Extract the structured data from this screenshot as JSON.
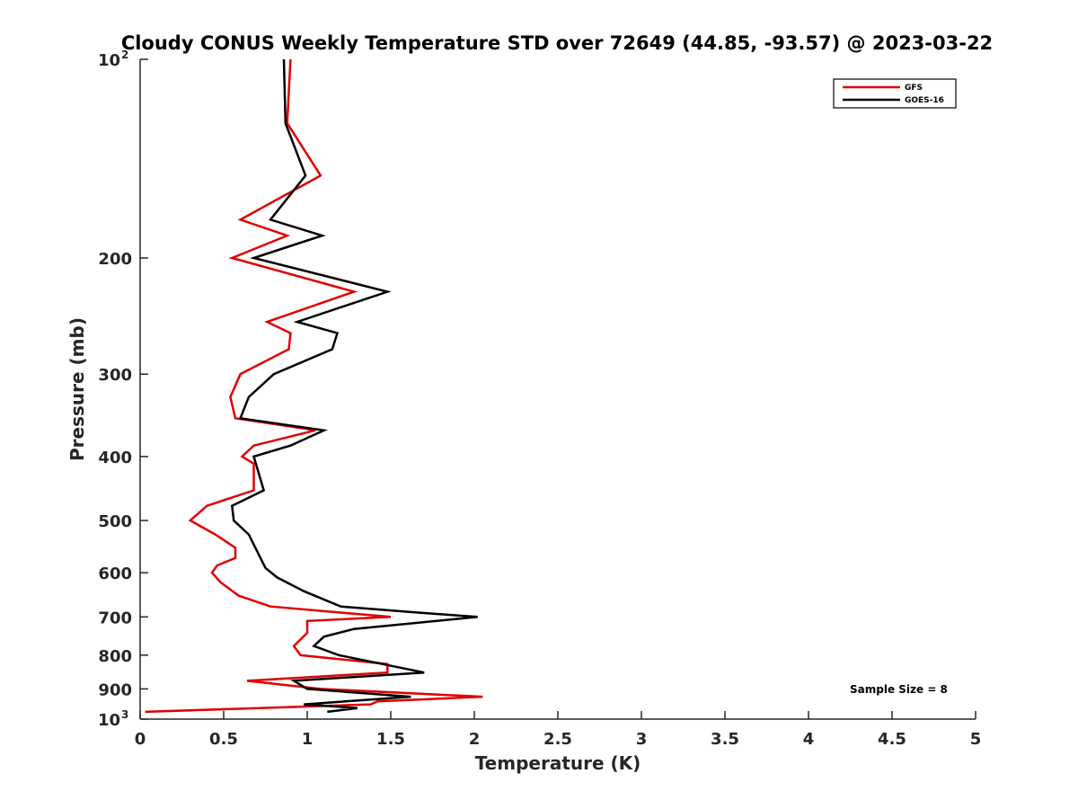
{
  "chart_data": {
    "type": "line",
    "title": "Cloudy CONUS Weekly Temperature STD over 72649 (44.85, -93.57) @ 2023-03-22",
    "xlabel": "Temperature (K)",
    "ylabel": "Pressure (mb)",
    "xlim": [
      0,
      5
    ],
    "ylim": [
      100,
      1000
    ],
    "yscale": "log",
    "y_reversed": true,
    "grid": false,
    "legend_position": "top-right",
    "x_ticks": [
      "0",
      "0.5",
      "1",
      "1.5",
      "2",
      "2.5",
      "3",
      "3.5",
      "4",
      "4.5",
      "5"
    ],
    "y_ticks": [
      {
        "value": 100,
        "label": "10",
        "sup": "2"
      },
      {
        "value": 200,
        "label": "200",
        "sup": ""
      },
      {
        "value": 300,
        "label": "300",
        "sup": ""
      },
      {
        "value": 400,
        "label": "400",
        "sup": ""
      },
      {
        "value": 500,
        "label": "500",
        "sup": ""
      },
      {
        "value": 600,
        "label": "600",
        "sup": ""
      },
      {
        "value": 700,
        "label": "700",
        "sup": ""
      },
      {
        "value": 800,
        "label": "800",
        "sup": ""
      },
      {
        "value": 900,
        "label": "900",
        "sup": ""
      },
      {
        "value": 1000,
        "label": "10",
        "sup": "3"
      }
    ],
    "annotation": "Sample Size = 8",
    "series": [
      {
        "name": "GFS",
        "color": "#e00000",
        "points": [
          [
            0.9,
            100
          ],
          [
            0.88,
            125
          ],
          [
            1.08,
            150
          ],
          [
            0.6,
            175
          ],
          [
            0.88,
            185
          ],
          [
            0.55,
            200
          ],
          [
            1.28,
            225
          ],
          [
            0.76,
            250
          ],
          [
            0.9,
            260
          ],
          [
            0.89,
            275
          ],
          [
            0.6,
            300
          ],
          [
            0.54,
            325
          ],
          [
            0.57,
            350
          ],
          [
            1.05,
            365
          ],
          [
            0.68,
            385
          ],
          [
            0.61,
            400
          ],
          [
            0.68,
            410
          ],
          [
            0.68,
            450
          ],
          [
            0.4,
            475
          ],
          [
            0.3,
            500
          ],
          [
            0.45,
            525
          ],
          [
            0.57,
            550
          ],
          [
            0.57,
            570
          ],
          [
            0.46,
            585
          ],
          [
            0.43,
            600
          ],
          [
            0.48,
            620
          ],
          [
            0.59,
            650
          ],
          [
            0.78,
            675
          ],
          [
            1.5,
            700
          ],
          [
            1.0,
            710
          ],
          [
            1.0,
            740
          ],
          [
            0.92,
            775
          ],
          [
            0.96,
            800
          ],
          [
            1.48,
            825
          ],
          [
            1.48,
            850
          ],
          [
            0.64,
            875
          ],
          [
            1.08,
            900
          ],
          [
            2.05,
            925
          ],
          [
            1.42,
            940
          ],
          [
            1.38,
            950
          ],
          [
            0.03,
            975
          ]
        ]
      },
      {
        "name": "GOES-16",
        "color": "#000000",
        "points": [
          [
            0.86,
            100
          ],
          [
            0.87,
            125
          ],
          [
            0.99,
            150
          ],
          [
            0.78,
            175
          ],
          [
            1.09,
            185
          ],
          [
            0.68,
            200
          ],
          [
            1.48,
            225
          ],
          [
            0.94,
            250
          ],
          [
            1.18,
            260
          ],
          [
            1.15,
            275
          ],
          [
            0.8,
            300
          ],
          [
            0.65,
            325
          ],
          [
            0.6,
            350
          ],
          [
            1.1,
            365
          ],
          [
            0.9,
            385
          ],
          [
            0.68,
            400
          ],
          [
            0.74,
            450
          ],
          [
            0.55,
            475
          ],
          [
            0.56,
            500
          ],
          [
            0.65,
            525
          ],
          [
            0.69,
            550
          ],
          [
            0.75,
            590
          ],
          [
            0.82,
            610
          ],
          [
            0.98,
            640
          ],
          [
            1.2,
            675
          ],
          [
            1.68,
            690
          ],
          [
            2.02,
            700
          ],
          [
            1.28,
            730
          ],
          [
            1.1,
            750
          ],
          [
            1.04,
            775
          ],
          [
            1.19,
            800
          ],
          [
            1.7,
            850
          ],
          [
            0.92,
            875
          ],
          [
            1.0,
            900
          ],
          [
            1.62,
            925
          ],
          [
            0.98,
            950
          ],
          [
            1.3,
            962
          ],
          [
            1.12,
            975
          ]
        ]
      }
    ]
  }
}
